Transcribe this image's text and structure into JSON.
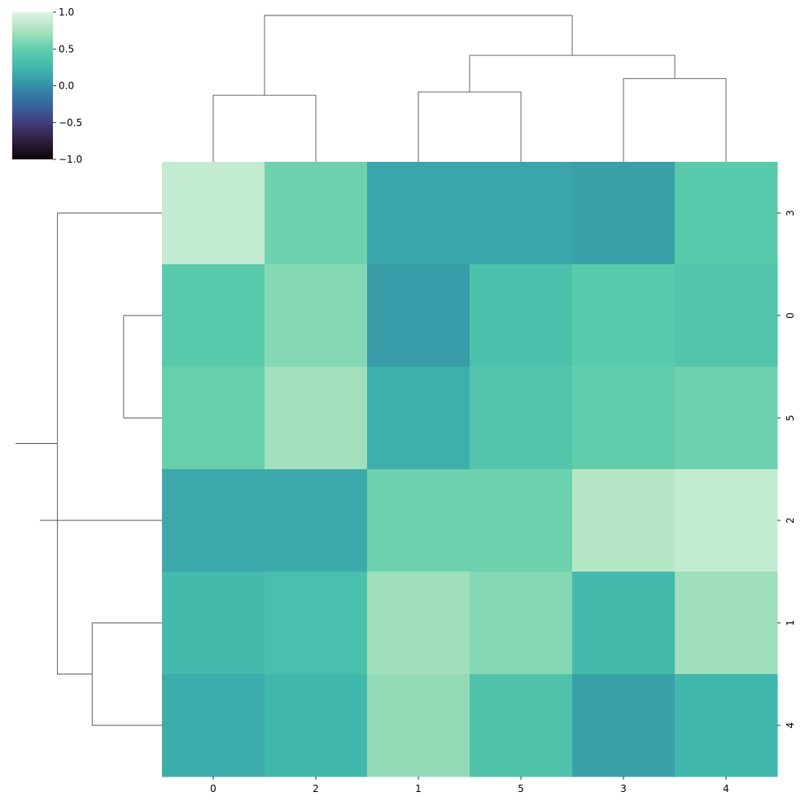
{
  "chart_data": {
    "type": "heatmap",
    "title": "",
    "xlabel": "",
    "ylabel": "",
    "col_labels": [
      "0",
      "2",
      "1",
      "5",
      "3",
      "4"
    ],
    "row_labels": [
      "3",
      "0",
      "5",
      "2",
      "1",
      "4"
    ],
    "values": [
      [
        0.87,
        0.55,
        0.13,
        0.13,
        0.11,
        0.45
      ],
      [
        0.45,
        0.62,
        0.08,
        0.35,
        0.45,
        0.4
      ],
      [
        0.52,
        0.72,
        0.2,
        0.4,
        0.5,
        0.55
      ],
      [
        0.15,
        0.17,
        0.55,
        0.55,
        0.8,
        0.87
      ],
      [
        0.27,
        0.33,
        0.71,
        0.62,
        0.27,
        0.71
      ],
      [
        0.18,
        0.25,
        0.67,
        0.38,
        0.11,
        0.25
      ]
    ],
    "colorbar": {
      "min": -1.0,
      "max": 1.0,
      "ticks": [
        1.0,
        0.5,
        0.0,
        -0.5,
        -1.0
      ],
      "tick_labels": [
        "1.0",
        "0.5",
        "0.0",
        "−0.5",
        "−1.0"
      ],
      "colormap": "mako"
    },
    "row_dendrogram": [
      {
        "a": 1,
        "b": 2,
        "height": 0.55
      },
      {
        "a": 4,
        "b": 5,
        "height": 1.0
      },
      {
        "a": 3,
        "b": 8,
        "height": 1.75
      },
      {
        "a": 0,
        "b": 7,
        "height": 1.5
      },
      {
        "a": 9,
        "b": 10,
        "height": 2.1
      }
    ],
    "col_dendrogram": [
      {
        "a": 2,
        "b": 3,
        "height": 1.05
      },
      {
        "a": 4,
        "b": 5,
        "height": 1.25
      },
      {
        "a": 0,
        "b": 1,
        "height": 1.0
      },
      {
        "a": 6,
        "b": 7,
        "height": 1.6
      },
      {
        "a": 8,
        "b": 9,
        "height": 2.2
      }
    ],
    "grid": false
  }
}
